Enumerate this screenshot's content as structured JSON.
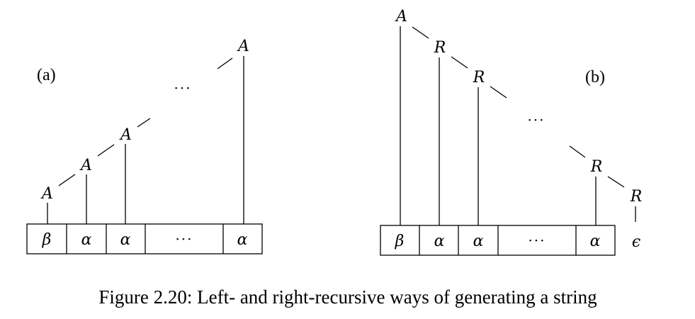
{
  "panels": {
    "a": {
      "label": "(a)",
      "nodes": [
        "A",
        "A",
        "A",
        "A"
      ],
      "ellipsis": "···",
      "cells": [
        "β",
        "α",
        "α",
        "···",
        "α"
      ]
    },
    "b": {
      "label": "(b)",
      "nodes": [
        "A",
        "R",
        "R",
        "R",
        "R"
      ],
      "ellipsis": "···",
      "cells": [
        "β",
        "α",
        "α",
        "···",
        "α"
      ],
      "epsilon": "ϵ"
    }
  },
  "caption": "Figure 2.20: Left- and right-recursive ways of generating a string"
}
